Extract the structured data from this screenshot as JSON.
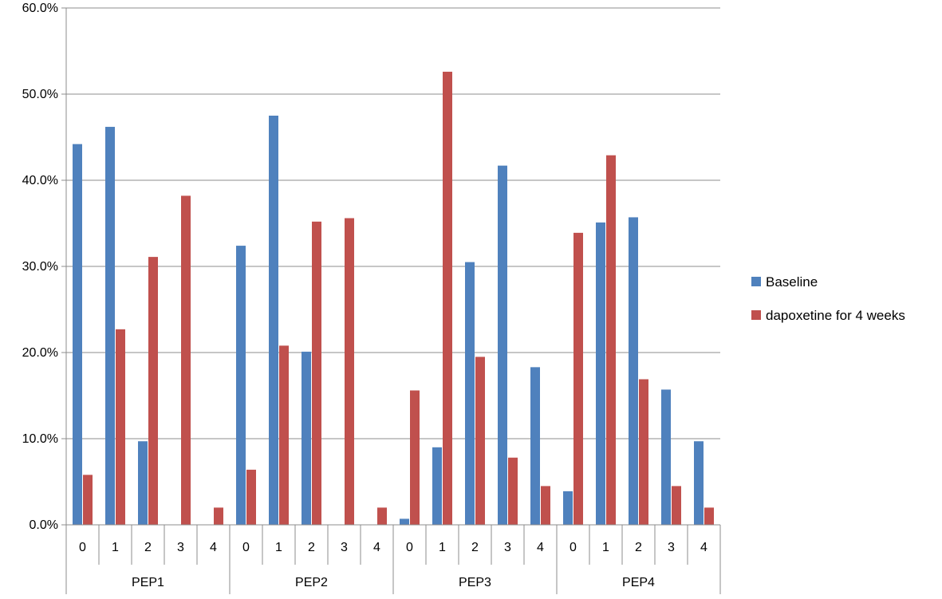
{
  "chart_data": {
    "type": "bar",
    "title": "",
    "xlabel": "",
    "ylabel": "",
    "ylim": [
      0,
      60
    ],
    "y_ticks": [
      {
        "value": 0,
        "label": "0.0%"
      },
      {
        "value": 10,
        "label": "10.0%"
      },
      {
        "value": 20,
        "label": "20.0%"
      },
      {
        "value": 30,
        "label": "30.0%"
      },
      {
        "value": 40,
        "label": "40.0%"
      },
      {
        "value": 50,
        "label": "50.0%"
      },
      {
        "value": 60,
        "label": "60.0%"
      }
    ],
    "grid": true,
    "legend_position": "right",
    "groups": [
      {
        "label": "PEP1",
        "categories": [
          "0",
          "1",
          "2",
          "3",
          "4"
        ]
      },
      {
        "label": "PEP2",
        "categories": [
          "0",
          "1",
          "2",
          "3",
          "4"
        ]
      },
      {
        "label": "PEP3",
        "categories": [
          "0",
          "1",
          "2",
          "3",
          "4"
        ]
      },
      {
        "label": "PEP4",
        "categories": [
          "0",
          "1",
          "2",
          "3",
          "4"
        ]
      }
    ],
    "series": [
      {
        "name": "Baseline",
        "color": "#4f81bd",
        "values": [
          44.2,
          46.2,
          9.7,
          0,
          0,
          32.4,
          47.5,
          20.1,
          0,
          0,
          0.7,
          9.0,
          30.5,
          41.7,
          18.3,
          3.9,
          35.1,
          35.7,
          15.7,
          9.7
        ]
      },
      {
        "name": "dapoxetine for 4 weeks",
        "color": "#c0504d",
        "values": [
          5.8,
          22.7,
          31.1,
          38.2,
          2.0,
          6.4,
          20.8,
          35.2,
          35.6,
          2.0,
          15.6,
          52.6,
          19.5,
          7.8,
          4.5,
          33.9,
          42.9,
          16.9,
          4.5,
          2.0
        ]
      }
    ]
  }
}
